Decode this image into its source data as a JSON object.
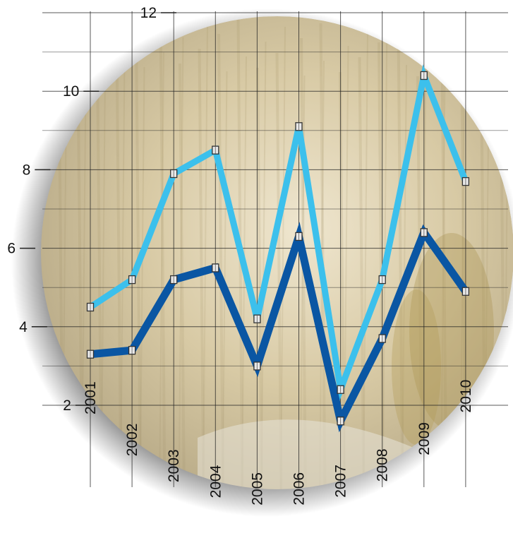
{
  "colors": {
    "background": "#ffffff",
    "series_light": "#3cc0ec",
    "series_dark": "#0a56a3",
    "grid": "#222222",
    "marker_fill": "#e8e8e8",
    "field_tone": "#c9bc9a"
  },
  "chart_data": {
    "type": "line",
    "title": "",
    "xlabel": "",
    "ylabel": "",
    "x": [
      "2001",
      "2002",
      "2003",
      "2004",
      "2005",
      "2006",
      "2007",
      "2008",
      "2009",
      "2010"
    ],
    "ylim": [
      2,
      12
    ],
    "yticks": [
      "2",
      "4",
      "6",
      "8",
      "10",
      "12"
    ],
    "grid": true,
    "legend": "none",
    "background_image": "wheat and corn field photo inside a circular vignette",
    "series": [
      {
        "color": "#3cc0ec",
        "values": [
          4.5,
          5.2,
          7.9,
          8.5,
          4.2,
          9.1,
          2.4,
          5.2,
          10.4,
          7.7
        ]
      },
      {
        "color": "#0a56a3",
        "values": [
          3.3,
          3.4,
          5.2,
          5.5,
          3.0,
          6.3,
          1.6,
          3.7,
          6.4,
          4.9
        ]
      }
    ]
  }
}
